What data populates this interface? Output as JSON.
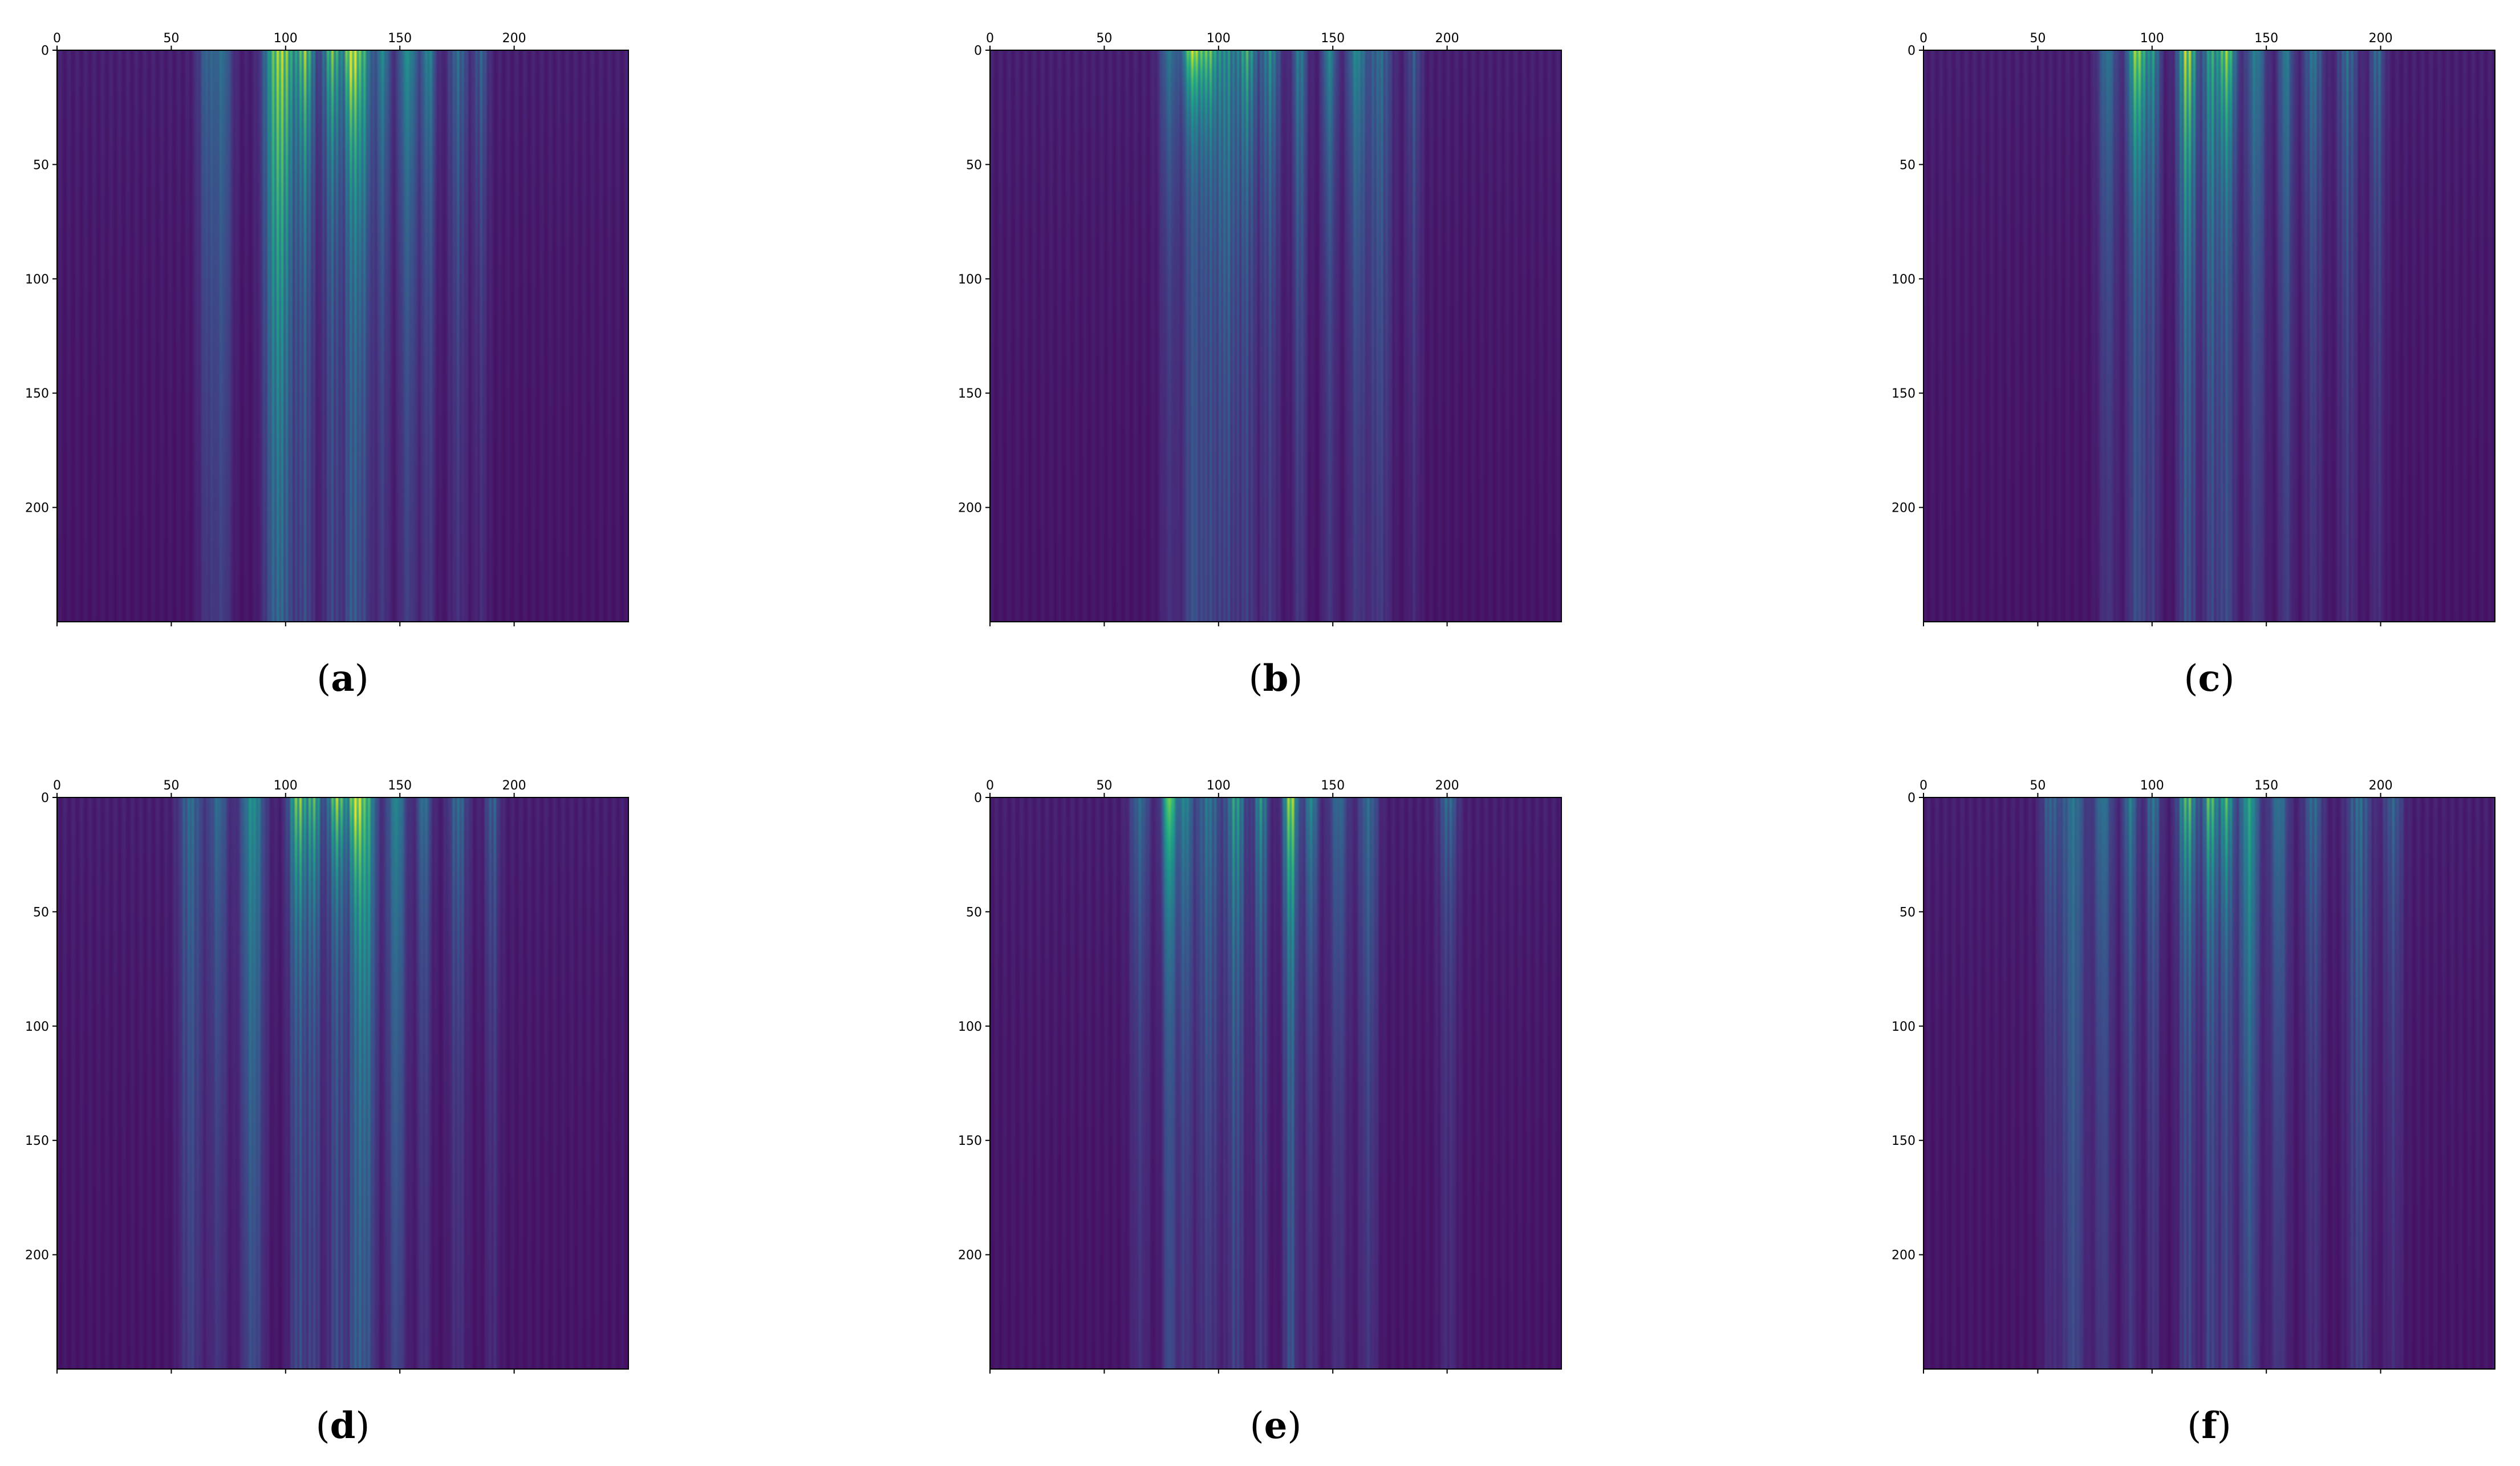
{
  "chart_data": [
    {
      "type": "heatmap",
      "caption_letter": "a",
      "xticks": [
        0,
        50,
        100,
        150,
        200
      ],
      "yticks": [
        0,
        50,
        100,
        150,
        200
      ],
      "xlim": [
        0,
        250
      ],
      "ylim": [
        250,
        0
      ],
      "colormap": "viridis",
      "xaxis_position": "top",
      "bands": [
        {
          "x": 65,
          "w": 4,
          "v": 0.3,
          "d": 0.006
        },
        {
          "x": 72,
          "w": 4,
          "v": 0.35,
          "d": 0.005
        },
        {
          "x": 95,
          "w": 5,
          "v": 0.75,
          "d": 0.006
        },
        {
          "x": 100,
          "w": 4,
          "v": 0.55,
          "d": 0.012
        },
        {
          "x": 108,
          "w": 4,
          "v": 0.85,
          "d": 0.018
        },
        {
          "x": 120,
          "w": 4,
          "v": 0.8,
          "d": 0.02
        },
        {
          "x": 128,
          "w": 3,
          "v": 1.0,
          "d": 0.025
        },
        {
          "x": 133,
          "w": 4,
          "v": 0.7,
          "d": 0.012
        },
        {
          "x": 142,
          "w": 3,
          "v": 0.5,
          "d": 0.012
        },
        {
          "x": 153,
          "w": 4,
          "v": 0.55,
          "d": 0.01
        },
        {
          "x": 162,
          "w": 3,
          "v": 0.5,
          "d": 0.012
        },
        {
          "x": 175,
          "w": 4,
          "v": 0.35,
          "d": 0.01
        },
        {
          "x": 185,
          "w": 3,
          "v": 0.3,
          "d": 0.012
        }
      ]
    },
    {
      "type": "heatmap",
      "caption_letter": "b",
      "xticks": [
        0,
        50,
        100,
        150,
        200
      ],
      "yticks": [
        0,
        50,
        100,
        150,
        200
      ],
      "xlim": [
        0,
        250
      ],
      "ylim": [
        250,
        0
      ],
      "colormap": "viridis",
      "xaxis_position": "top",
      "bands": [
        {
          "x": 78,
          "w": 4,
          "v": 0.4,
          "d": 0.015
        },
        {
          "x": 88,
          "w": 4,
          "v": 1.0,
          "d": 0.04
        },
        {
          "x": 95,
          "w": 4,
          "v": 0.75,
          "d": 0.03
        },
        {
          "x": 103,
          "w": 5,
          "v": 0.5,
          "d": 0.008
        },
        {
          "x": 112,
          "w": 4,
          "v": 0.65,
          "d": 0.02
        },
        {
          "x": 122,
          "w": 4,
          "v": 0.5,
          "d": 0.015
        },
        {
          "x": 135,
          "w": 3,
          "v": 0.45,
          "d": 0.01
        },
        {
          "x": 148,
          "w": 3,
          "v": 0.5,
          "d": 0.015
        },
        {
          "x": 160,
          "w": 4,
          "v": 0.5,
          "d": 0.012
        },
        {
          "x": 170,
          "w": 5,
          "v": 0.35,
          "d": 0.006
        },
        {
          "x": 185,
          "w": 3,
          "v": 0.25,
          "d": 0.01
        }
      ]
    },
    {
      "type": "heatmap",
      "caption_letter": "c",
      "xticks": [
        0,
        50,
        100,
        150,
        200
      ],
      "yticks": [
        0,
        50,
        100,
        150,
        200
      ],
      "xlim": [
        0,
        250
      ],
      "ylim": [
        250,
        0
      ],
      "colormap": "viridis",
      "xaxis_position": "top",
      "bands": [
        {
          "x": 80,
          "w": 4,
          "v": 0.4,
          "d": 0.01
        },
        {
          "x": 93,
          "w": 4,
          "v": 0.95,
          "d": 0.02
        },
        {
          "x": 100,
          "w": 3,
          "v": 0.5,
          "d": 0.015
        },
        {
          "x": 115,
          "w": 4,
          "v": 0.95,
          "d": 0.015
        },
        {
          "x": 125,
          "w": 3,
          "v": 0.6,
          "d": 0.01
        },
        {
          "x": 132,
          "w": 4,
          "v": 0.9,
          "d": 0.02
        },
        {
          "x": 145,
          "w": 4,
          "v": 0.45,
          "d": 0.008
        },
        {
          "x": 158,
          "w": 3,
          "v": 0.45,
          "d": 0.008
        },
        {
          "x": 170,
          "w": 4,
          "v": 0.4,
          "d": 0.012
        },
        {
          "x": 185,
          "w": 4,
          "v": 0.35,
          "d": 0.01
        },
        {
          "x": 198,
          "w": 3,
          "v": 0.35,
          "d": 0.012
        }
      ]
    },
    {
      "type": "heatmap",
      "caption_letter": "d",
      "xticks": [
        0,
        50,
        100,
        150,
        200
      ],
      "yticks": [
        0,
        50,
        100,
        150,
        200
      ],
      "xlim": [
        0,
        250
      ],
      "ylim": [
        250,
        0
      ],
      "colormap": "viridis",
      "xaxis_position": "top",
      "bands": [
        {
          "x": 58,
          "w": 5,
          "v": 0.35,
          "d": 0.005
        },
        {
          "x": 70,
          "w": 4,
          "v": 0.35,
          "d": 0.008
        },
        {
          "x": 85,
          "w": 5,
          "v": 0.55,
          "d": 0.006
        },
        {
          "x": 105,
          "w": 4,
          "v": 0.85,
          "d": 0.02
        },
        {
          "x": 112,
          "w": 3,
          "v": 0.7,
          "d": 0.02
        },
        {
          "x": 122,
          "w": 4,
          "v": 0.9,
          "d": 0.03
        },
        {
          "x": 130,
          "w": 3,
          "v": 1.0,
          "d": 0.03
        },
        {
          "x": 135,
          "w": 4,
          "v": 0.7,
          "d": 0.008
        },
        {
          "x": 148,
          "w": 4,
          "v": 0.5,
          "d": 0.006
        },
        {
          "x": 160,
          "w": 3,
          "v": 0.4,
          "d": 0.012
        },
        {
          "x": 175,
          "w": 4,
          "v": 0.35,
          "d": 0.012
        },
        {
          "x": 190,
          "w": 3,
          "v": 0.3,
          "d": 0.012
        }
      ]
    },
    {
      "type": "heatmap",
      "caption_letter": "e",
      "xticks": [
        0,
        50,
        100,
        150,
        200
      ],
      "yticks": [
        0,
        50,
        100,
        150,
        200
      ],
      "xlim": [
        0,
        250
      ],
      "ylim": [
        250,
        0
      ],
      "colormap": "viridis",
      "xaxis_position": "top",
      "bands": [
        {
          "x": 65,
          "w": 4,
          "v": 0.35,
          "d": 0.012
        },
        {
          "x": 78,
          "w": 3,
          "v": 0.95,
          "d": 0.02
        },
        {
          "x": 85,
          "w": 3,
          "v": 0.5,
          "d": 0.012
        },
        {
          "x": 95,
          "w": 5,
          "v": 0.4,
          "d": 0.008
        },
        {
          "x": 107,
          "w": 4,
          "v": 0.6,
          "d": 0.012
        },
        {
          "x": 118,
          "w": 3,
          "v": 0.55,
          "d": 0.015
        },
        {
          "x": 131,
          "w": 3,
          "v": 1.0,
          "d": 0.018
        },
        {
          "x": 140,
          "w": 3,
          "v": 0.5,
          "d": 0.015
        },
        {
          "x": 152,
          "w": 4,
          "v": 0.35,
          "d": 0.01
        },
        {
          "x": 165,
          "w": 4,
          "v": 0.35,
          "d": 0.008
        },
        {
          "x": 200,
          "w": 4,
          "v": 0.35,
          "d": 0.02
        }
      ]
    },
    {
      "type": "heatmap",
      "caption_letter": "f",
      "xticks": [
        0,
        50,
        100,
        150,
        200
      ],
      "yticks": [
        0,
        50,
        100,
        150,
        200
      ],
      "xlim": [
        0,
        250
      ],
      "ylim": [
        250,
        0
      ],
      "colormap": "viridis",
      "xaxis_position": "top",
      "bands": [
        {
          "x": 55,
          "w": 4,
          "v": 0.3,
          "d": 0.012
        },
        {
          "x": 65,
          "w": 5,
          "v": 0.4,
          "d": 0.004
        },
        {
          "x": 78,
          "w": 4,
          "v": 0.4,
          "d": 0.008
        },
        {
          "x": 90,
          "w": 3,
          "v": 0.45,
          "d": 0.012
        },
        {
          "x": 100,
          "w": 3,
          "v": 0.4,
          "d": 0.012
        },
        {
          "x": 115,
          "w": 4,
          "v": 0.75,
          "d": 0.02
        },
        {
          "x": 125,
          "w": 3,
          "v": 0.8,
          "d": 0.02
        },
        {
          "x": 132,
          "w": 3,
          "v": 0.75,
          "d": 0.02
        },
        {
          "x": 142,
          "w": 4,
          "v": 0.65,
          "d": 0.008
        },
        {
          "x": 155,
          "w": 4,
          "v": 0.4,
          "d": 0.008
        },
        {
          "x": 170,
          "w": 4,
          "v": 0.35,
          "d": 0.012
        },
        {
          "x": 190,
          "w": 5,
          "v": 0.35,
          "d": 0.006
        },
        {
          "x": 205,
          "w": 4,
          "v": 0.3,
          "d": 0.012
        }
      ]
    }
  ]
}
